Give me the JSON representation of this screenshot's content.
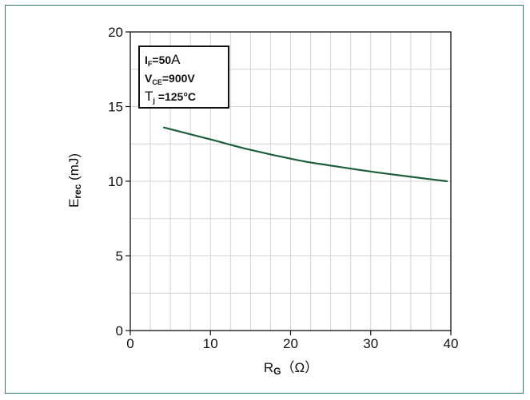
{
  "chart_data": {
    "type": "line",
    "title": "",
    "xlabel": {
      "main": "R",
      "sub": "G",
      "unit": "（Ω）"
    },
    "ylabel": {
      "main": "E",
      "sub": "rec",
      "unit": " (mJ)"
    },
    "xlim": [
      0,
      40
    ],
    "ylim": [
      0,
      20
    ],
    "xticks": [
      0,
      10,
      20,
      30,
      40
    ],
    "yticks": [
      0,
      5,
      10,
      15,
      20
    ],
    "x_minor_step": 2.5,
    "y_minor_step": 2.5,
    "grid": true,
    "conditions": [
      {
        "sym": "I",
        "sub": "F",
        "val": "=50",
        "tail": "A"
      },
      {
        "sym": "V",
        "sub": "CE",
        "val": "=900V",
        "tail": ""
      },
      {
        "sym": "T",
        "sub": "j",
        "val": " =125°C",
        "tail": ""
      }
    ],
    "legend_position": "top-left",
    "series": [
      {
        "color": "#1b5e3b",
        "x": [
          4.2,
          10,
          15,
          21,
          25,
          30,
          35,
          39.5
        ],
        "y": [
          13.6,
          12.8,
          12.1,
          11.4,
          11.05,
          10.65,
          10.3,
          10.0
        ]
      }
    ]
  }
}
